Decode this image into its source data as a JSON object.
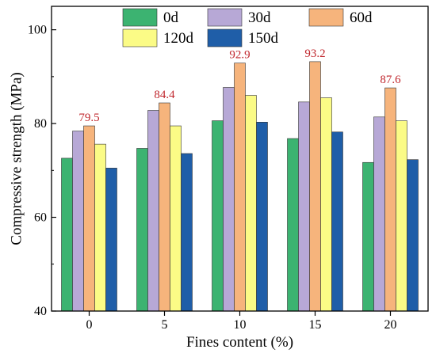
{
  "chart_data": {
    "type": "bar",
    "xlabel": "Fines content (%)",
    "ylabel": "Compressive strength (MPa)",
    "ylim": [
      40,
      105
    ],
    "yticks": [
      40,
      60,
      80,
      100
    ],
    "categories": [
      "0",
      "5",
      "10",
      "15",
      "20"
    ],
    "series": [
      {
        "name": "0d",
        "color": "#3cb371",
        "values": [
          72.6,
          74.7,
          80.6,
          76.8,
          71.7
        ]
      },
      {
        "name": "30d",
        "color": "#b7a8d6",
        "values": [
          78.4,
          82.8,
          87.7,
          84.6,
          81.4
        ]
      },
      {
        "name": "60d",
        "color": "#f6b47c",
        "values": [
          79.5,
          84.4,
          92.9,
          93.2,
          87.6
        ]
      },
      {
        "name": "120d",
        "color": "#fbfb86",
        "values": [
          75.6,
          79.5,
          86.0,
          85.5,
          80.6
        ]
      },
      {
        "name": "150d",
        "color": "#1f5ea8",
        "values": [
          70.5,
          73.6,
          80.3,
          78.2,
          72.3
        ]
      }
    ],
    "data_labels": {
      "series": "60d",
      "color": "#c0272d",
      "values": [
        "79.5",
        "84.4",
        "92.9",
        "93.2",
        "87.6"
      ]
    },
    "legend_position": "top",
    "grid": false
  }
}
